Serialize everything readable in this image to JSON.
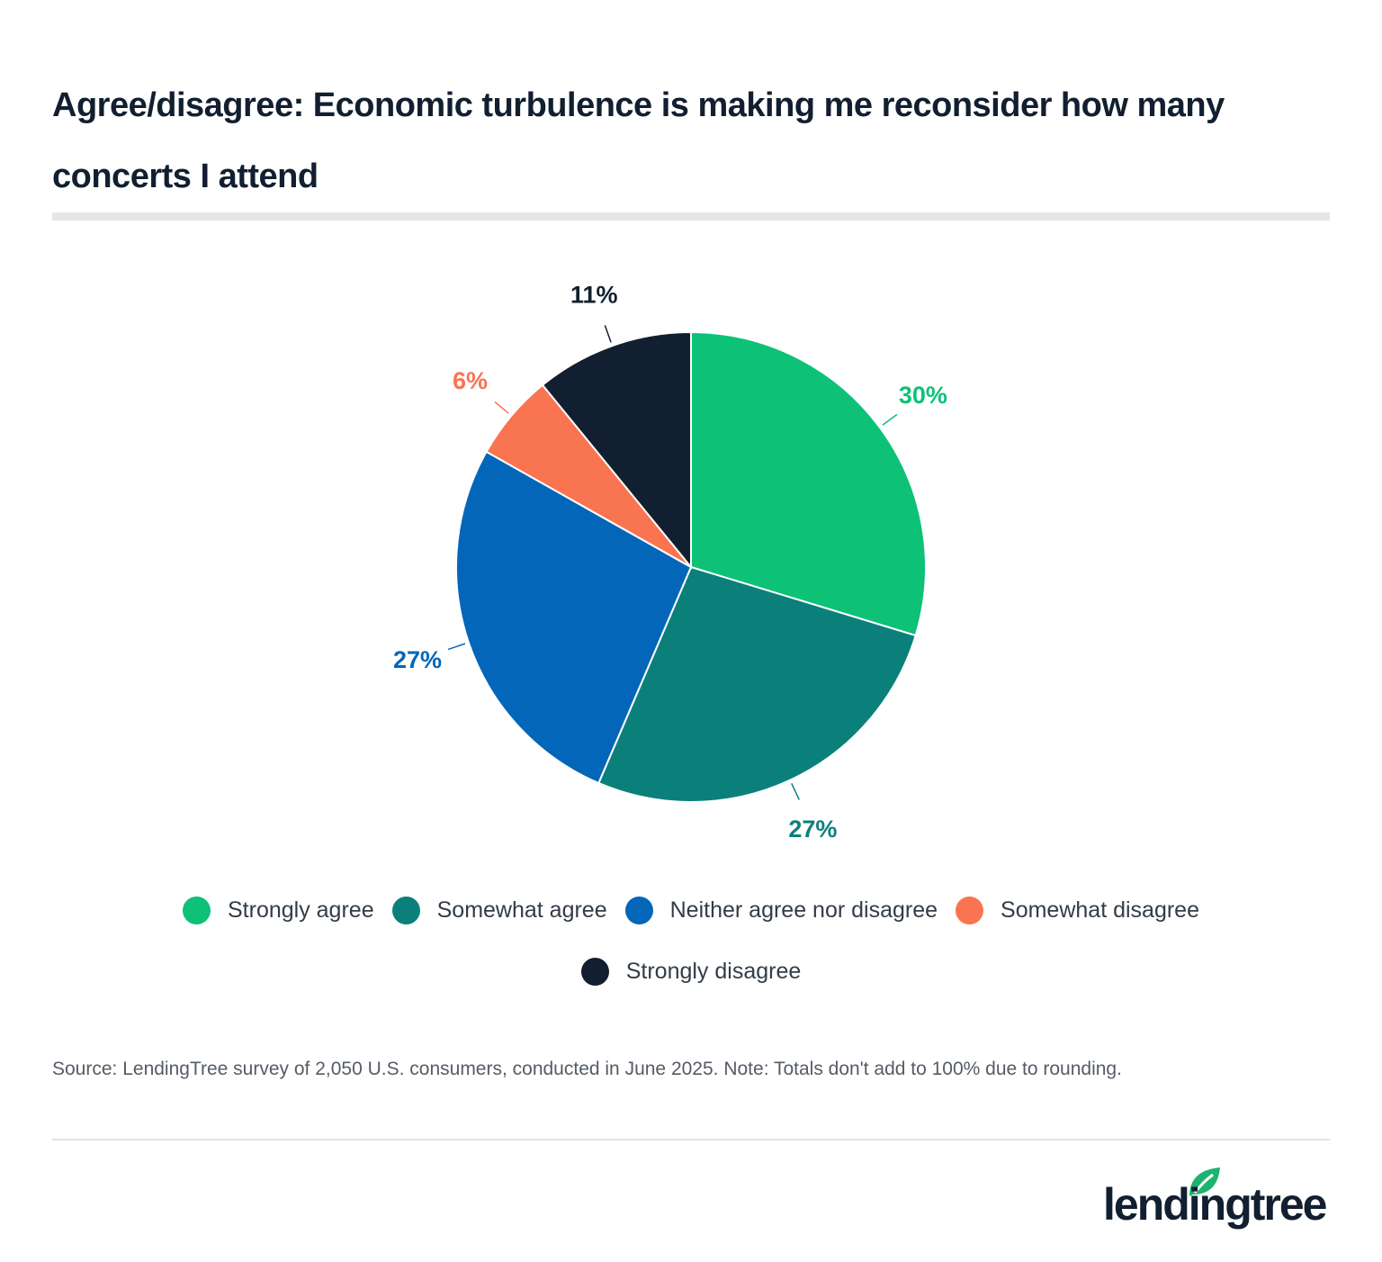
{
  "chart_data": {
    "type": "pie",
    "title": "Agree/disagree: Economic turbulence is making me reconsider how many concerts I attend",
    "categories": [
      "Strongly agree",
      "Somewhat agree",
      "Neither agree nor disagree",
      "Somewhat disagree",
      "Strongly disagree"
    ],
    "values": [
      30,
      27,
      27,
      6,
      11
    ],
    "labels": [
      "30%",
      "27%",
      "27%",
      "6%",
      "11%"
    ],
    "colors": [
      "#0dc177",
      "#0b807b",
      "#0366b9",
      "#f97450",
      "#111f30"
    ],
    "legend_position": "bottom"
  },
  "source": "Source: LendingTree survey of 2,050 U.S. consumers, conducted in June 2025. Note: Totals don't add to 100% due to rounding.",
  "logo": {
    "text": "lendingtree",
    "leaf_color": "#1db26f"
  }
}
